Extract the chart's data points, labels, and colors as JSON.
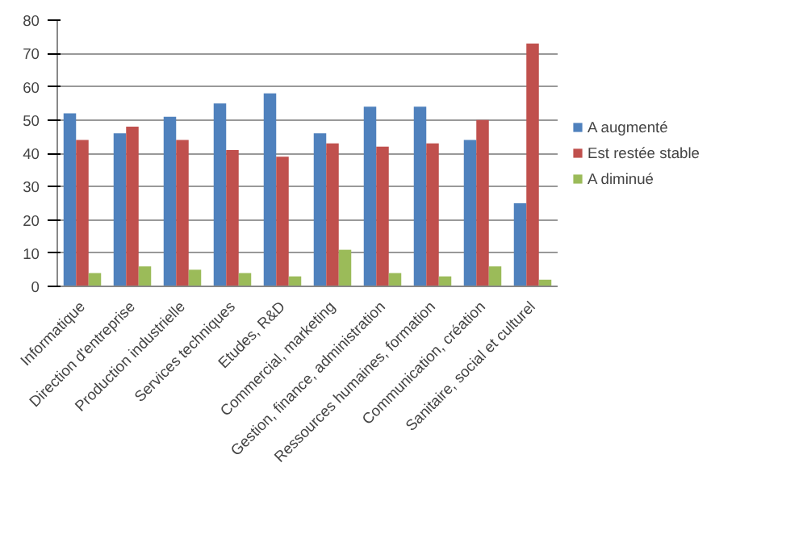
{
  "chart_data": {
    "type": "bar",
    "categories": [
      "Informatique",
      "Direction d'entreprise",
      "Production industrielle",
      "Services techniques",
      "Etudes, R&D",
      "Commercial, marketing",
      "Gestion, finance, administration",
      "Ressources humaines, formation",
      "Communication, création",
      "Sanitaire, social et culturel"
    ],
    "series": [
      {
        "name": "A augmenté",
        "color": "#4f81bd",
        "values": [
          52,
          46,
          51,
          55,
          58,
          46,
          54,
          54,
          44,
          25
        ]
      },
      {
        "name": "Est restée stable",
        "color": "#c0504d",
        "values": [
          44,
          48,
          44,
          41,
          39,
          43,
          42,
          43,
          50,
          73
        ]
      },
      {
        "name": "A diminué",
        "color": "#9bbb59",
        "values": [
          4,
          6,
          5,
          4,
          3,
          11,
          4,
          3,
          6,
          2
        ]
      }
    ],
    "ylim": [
      0,
      80
    ],
    "yticks": [
      0,
      10,
      20,
      30,
      40,
      50,
      60,
      70,
      80
    ],
    "grid": "y",
    "legend": "right"
  }
}
